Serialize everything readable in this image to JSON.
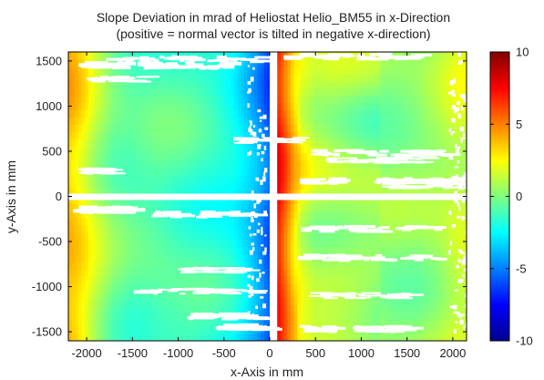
{
  "chart_data": {
    "type": "heatmap",
    "title": "Slope Deviation in mrad of Heliostat Helio_BM55 in x-Direction",
    "subtitle": "(positive = normal vector is tilted in negative x-direction)",
    "xlabel": "x-Axis in mm",
    "ylabel": "y-Axis in mm",
    "xlim": [
      -2200,
      2150
    ],
    "ylim": [
      -1600,
      1600
    ],
    "x_ticks": [
      -2000,
      -1500,
      -1000,
      -500,
      0,
      500,
      1000,
      1500,
      2000
    ],
    "y_ticks": [
      -1500,
      -1000,
      -500,
      0,
      500,
      1000,
      1500
    ],
    "colorbar": {
      "range": [
        -10,
        10
      ],
      "ticks": [
        -10,
        -5,
        0,
        5,
        10
      ],
      "colormap": "jet"
    },
    "gaps": {
      "x": [
        0,
        80
      ],
      "y": [
        0,
        0
      ]
    },
    "profile_x": [
      -2200,
      -2100,
      -2000,
      -1900,
      -1700,
      -1500,
      -1200,
      -900,
      -600,
      -400,
      -250,
      -150,
      -80,
      -30,
      0,
      80,
      120,
      180,
      250,
      350,
      500,
      700,
      1000,
      1300,
      1600,
      1850,
      1950,
      2050,
      2150
    ],
    "profile_value": [
      3.8,
      3.2,
      2.3,
      1.2,
      -0.3,
      -0.8,
      -0.8,
      -1.1,
      -1.6,
      -2.2,
      -3.2,
      -4.0,
      -4.8,
      -5.5,
      -5.8,
      7.5,
      6.6,
      5.4,
      3.8,
      2.0,
      1.0,
      0.8,
      0.5,
      0.2,
      0.3,
      0.8,
      1.2,
      1.5,
      1.5
    ]
  }
}
